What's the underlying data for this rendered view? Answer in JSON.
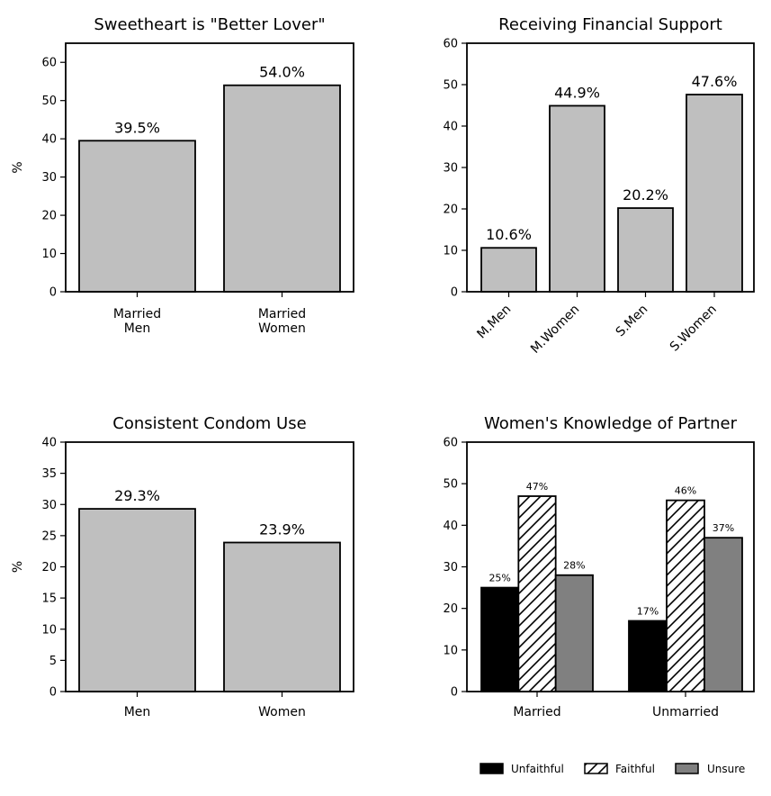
{
  "chart_data": [
    {
      "id": "lover",
      "type": "bar",
      "title": "Sweetheart is \"Better Lover\"",
      "ylabel": "%",
      "xlabel": "",
      "ylim": [
        0,
        65
      ],
      "yticks": [
        0,
        10,
        20,
        30,
        40,
        50,
        60
      ],
      "categories": [
        [
          "Married",
          "Men"
        ],
        [
          "Married",
          "Women"
        ]
      ],
      "values": [
        39.5,
        54.0
      ],
      "value_labels": [
        "39.5%",
        "54.0%"
      ],
      "bar_color": "#bfbfbf"
    },
    {
      "id": "finance",
      "type": "bar",
      "title": "Receiving Financial Support",
      "ylabel": "",
      "xlabel": "",
      "ylim": [
        0,
        60
      ],
      "yticks": [
        0,
        10,
        20,
        30,
        40,
        50,
        60
      ],
      "categories": [
        "M.Men",
        "M.Women",
        "S.Men",
        "S.Women"
      ],
      "values": [
        10.6,
        44.9,
        20.2,
        47.6
      ],
      "value_labels": [
        "10.6%",
        "44.9%",
        "20.2%",
        "47.6%"
      ],
      "bar_color": "#bfbfbf"
    },
    {
      "id": "condom",
      "type": "bar",
      "title": "Consistent Condom Use",
      "ylabel": "%",
      "xlabel": "",
      "ylim": [
        0,
        40
      ],
      "yticks": [
        0,
        5,
        10,
        15,
        20,
        25,
        30,
        35,
        40
      ],
      "categories": [
        "Men",
        "Women"
      ],
      "values": [
        29.3,
        23.9
      ],
      "value_labels": [
        "29.3%",
        "23.9%"
      ],
      "bar_color": "#bfbfbf"
    },
    {
      "id": "knowledge",
      "type": "bar",
      "title": "Women's Knowledge of Partner",
      "ylabel": "",
      "xlabel": "",
      "ylim": [
        0,
        60
      ],
      "yticks": [
        0,
        10,
        20,
        30,
        40,
        50,
        60
      ],
      "categories": [
        "Married",
        "Unmarried"
      ],
      "series": [
        {
          "name": "Unfaithful",
          "values": [
            25,
            17
          ],
          "value_labels": [
            "25%",
            "17%"
          ],
          "color": "#000000",
          "pattern": "solid"
        },
        {
          "name": "Faithful",
          "values": [
            47,
            46
          ],
          "value_labels": [
            "47%",
            "46%"
          ],
          "color": "#ffffff",
          "pattern": "hatch"
        },
        {
          "name": "Unsure",
          "values": [
            28,
            37
          ],
          "value_labels": [
            "28%",
            "37%"
          ],
          "color": "#808080",
          "pattern": "solid"
        }
      ],
      "legend_position": "bottom-right"
    }
  ]
}
